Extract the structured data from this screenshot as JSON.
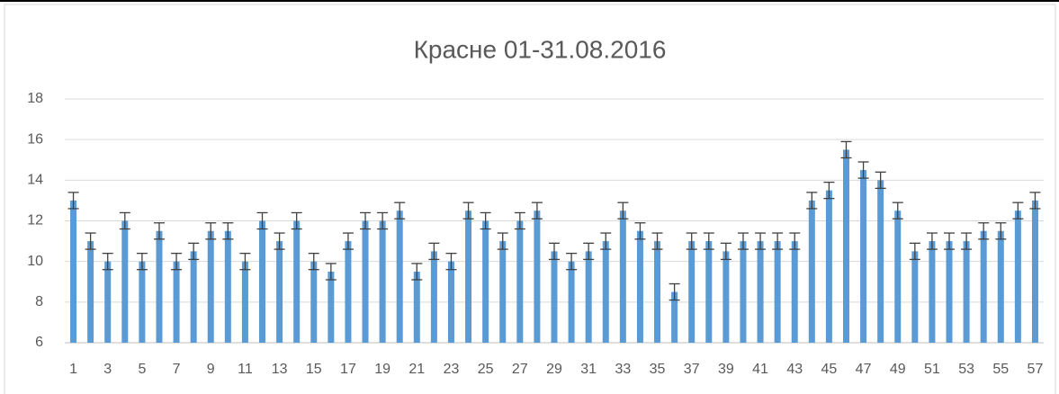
{
  "chart_data": {
    "type": "bar",
    "title": "Красне 01-31.08.2016",
    "categories": [
      1,
      null,
      3,
      null,
      5,
      null,
      7,
      null,
      9,
      null,
      11,
      null,
      13,
      null,
      15,
      null,
      17,
      null,
      19,
      null,
      21,
      null,
      23,
      null,
      25,
      null,
      27,
      null,
      29,
      null,
      31,
      null,
      33,
      null,
      35,
      null,
      37,
      null,
      39,
      null,
      41,
      null,
      43,
      null,
      45,
      null,
      47,
      null,
      49,
      null,
      51,
      null,
      53,
      null,
      55,
      null,
      57
    ],
    "values": [
      13,
      11,
      10,
      12,
      10,
      11.5,
      10,
      10.5,
      11.5,
      11.5,
      10,
      12,
      11,
      12,
      10,
      9.5,
      11,
      12,
      12,
      12.5,
      9.5,
      10.5,
      10,
      12.5,
      12,
      11,
      12,
      12.5,
      10.5,
      10,
      10.5,
      11,
      12.5,
      11.5,
      11,
      8.5,
      11,
      11,
      10.5,
      11,
      11,
      11,
      11,
      13,
      13.5,
      15.5,
      14.5,
      14,
      12.5,
      10.5,
      11,
      11,
      11,
      11.5,
      11.5,
      12.5,
      13
    ],
    "error": 0.4,
    "color": "#5b9bd5",
    "ylim": [
      6,
      18
    ],
    "yticks": [
      6,
      8,
      10,
      12,
      14,
      16,
      18
    ],
    "grid": true
  }
}
